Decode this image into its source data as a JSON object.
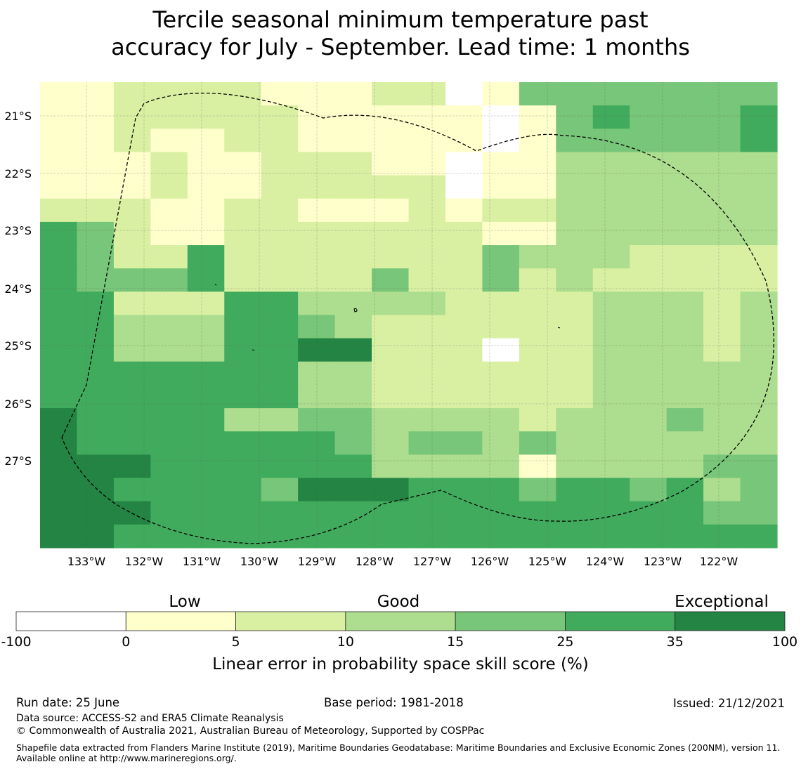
{
  "title": {
    "line1": "Tercile seasonal minimum temperature past",
    "line2": "accuracy for July - September. Lead time: 1 months"
  },
  "map": {
    "lon_labels": [
      "133°W",
      "132°W",
      "131°W",
      "130°W",
      "129°W",
      "128°W",
      "127°W",
      "126°W",
      "125°W",
      "124°W",
      "123°W",
      "122°W"
    ],
    "lat_labels": [
      "21°S",
      "22°S",
      "23°S",
      "24°S",
      "25°S",
      "26°S",
      "27°S"
    ],
    "grid_lon_range_deg_w": [
      133.8,
      121.0
    ],
    "grid_lat_range_deg_s": [
      20.6,
      28.7
    ],
    "cell_levels": [
      [
        1,
        1,
        2,
        2,
        2,
        2,
        1,
        1,
        1,
        2,
        2,
        0,
        1,
        4,
        4,
        4,
        4,
        4,
        4,
        4
      ],
      [
        1,
        1,
        2,
        2,
        2,
        2,
        2,
        1,
        1,
        1,
        1,
        1,
        0,
        1,
        4,
        5,
        4,
        4,
        4,
        5
      ],
      [
        1,
        1,
        2,
        1,
        1,
        2,
        2,
        1,
        1,
        1,
        1,
        1,
        0,
        1,
        4,
        4,
        4,
        4,
        4,
        5
      ],
      [
        1,
        1,
        1,
        2,
        1,
        1,
        2,
        2,
        2,
        1,
        1,
        0,
        1,
        1,
        3,
        3,
        3,
        3,
        3,
        3
      ],
      [
        1,
        1,
        1,
        2,
        1,
        1,
        2,
        2,
        2,
        2,
        2,
        0,
        1,
        1,
        3,
        3,
        3,
        3,
        3,
        3
      ],
      [
        2,
        2,
        2,
        1,
        1,
        2,
        2,
        1,
        1,
        1,
        2,
        1,
        2,
        2,
        3,
        3,
        3,
        3,
        3,
        3
      ],
      [
        5,
        4,
        2,
        1,
        1,
        2,
        2,
        2,
        2,
        2,
        2,
        2,
        1,
        1,
        3,
        3,
        3,
        3,
        3,
        3
      ],
      [
        5,
        4,
        2,
        2,
        5,
        2,
        2,
        2,
        2,
        2,
        2,
        2,
        4,
        3,
        3,
        3,
        2,
        2,
        2,
        2
      ],
      [
        5,
        4,
        4,
        4,
        5,
        2,
        2,
        2,
        2,
        4,
        2,
        2,
        4,
        2,
        3,
        2,
        2,
        2,
        2,
        2
      ],
      [
        5,
        5,
        2,
        2,
        2,
        5,
        5,
        3,
        3,
        3,
        3,
        2,
        2,
        2,
        2,
        3,
        3,
        3,
        2,
        3
      ],
      [
        5,
        5,
        3,
        3,
        3,
        5,
        5,
        4,
        3,
        2,
        2,
        2,
        2,
        2,
        2,
        3,
        3,
        3,
        2,
        3
      ],
      [
        5,
        5,
        3,
        3,
        3,
        5,
        5,
        6,
        6,
        2,
        2,
        2,
        0,
        2,
        2,
        3,
        3,
        3,
        2,
        3
      ],
      [
        5,
        5,
        5,
        5,
        5,
        5,
        5,
        3,
        3,
        2,
        2,
        2,
        2,
        2,
        2,
        3,
        3,
        3,
        3,
        3
      ],
      [
        5,
        5,
        5,
        5,
        5,
        5,
        5,
        3,
        3,
        2,
        2,
        2,
        2,
        2,
        2,
        3,
        3,
        3,
        3,
        3
      ],
      [
        6,
        5,
        5,
        5,
        5,
        3,
        3,
        4,
        4,
        3,
        3,
        3,
        3,
        2,
        3,
        3,
        3,
        4,
        3,
        3
      ],
      [
        6,
        5,
        5,
        5,
        5,
        5,
        5,
        5,
        4,
        3,
        4,
        4,
        3,
        4,
        3,
        3,
        3,
        3,
        3,
        3
      ],
      [
        6,
        6,
        6,
        5,
        5,
        5,
        5,
        5,
        5,
        3,
        3,
        3,
        3,
        1,
        3,
        3,
        3,
        3,
        4,
        4
      ],
      [
        6,
        6,
        5,
        5,
        5,
        5,
        4,
        6,
        6,
        6,
        5,
        5,
        5,
        4,
        5,
        5,
        4,
        5,
        3,
        4
      ],
      [
        6,
        6,
        6,
        5,
        5,
        5,
        5,
        5,
        5,
        5,
        5,
        5,
        5,
        5,
        5,
        5,
        5,
        5,
        4,
        4
      ],
      [
        6,
        6,
        5,
        5,
        5,
        5,
        5,
        5,
        5,
        5,
        5,
        5,
        5,
        5,
        5,
        5,
        5,
        5,
        5,
        5
      ]
    ]
  },
  "colorbar": {
    "category_labels": [
      "Low",
      "Good",
      "Exceptional"
    ],
    "tick_labels": [
      "-100",
      "0",
      "5",
      "10",
      "15",
      "25",
      "35",
      "100"
    ],
    "colors": [
      "#ffffff",
      "#ffffcc",
      "#d9f0a3",
      "#addd8e",
      "#78c679",
      "#41ab5d",
      "#238443"
    ],
    "label": "Linear error in probability space skill score (%)"
  },
  "footer": {
    "run_date": "Run date: 25 June",
    "base_period": "Base period: 1981-2018",
    "issued": "Issued: 21/12/2021",
    "data_source": "Data source: ACCESS-S2 and ERA5 Climate Reanalysis",
    "copyright": "© Commonwealth of Australia 2021, Australian Bureau of Meteorology, Supported by COSPPac",
    "shapefile": "Shapefile data extracted from Flanders Marine Institute (2019), Maritime Boundaries Geodatabase: Maritime Boundaries and Exclusive Economic Zones (200NM), version 11. Available online at http://www.marineregions.org/."
  }
}
